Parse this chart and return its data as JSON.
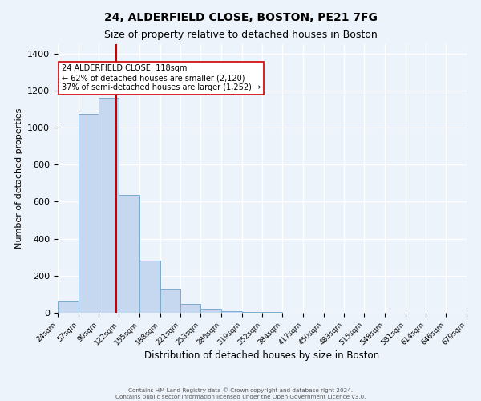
{
  "title": "24, ALDERFIELD CLOSE, BOSTON, PE21 7FG",
  "subtitle": "Size of property relative to detached houses in Boston",
  "xlabel": "Distribution of detached houses by size in Boston",
  "ylabel": "Number of detached properties",
  "bin_edges": [
    24,
    57,
    90,
    122,
    155,
    188,
    221,
    253,
    286,
    319,
    352,
    384,
    417,
    450,
    483,
    515,
    548,
    581,
    614,
    646,
    679
  ],
  "bin_heights": [
    65,
    1075,
    1160,
    635,
    280,
    130,
    48,
    20,
    10,
    5,
    5,
    0,
    0,
    0,
    0,
    0,
    0,
    0,
    0,
    0
  ],
  "bar_color": "#c5d8f0",
  "bar_edge_color": "#7aabcf",
  "property_size": 118,
  "vline_color": "#cc0000",
  "annotation_text": "24 ALDERFIELD CLOSE: 118sqm\n← 62% of detached houses are smaller (2,120)\n37% of semi-detached houses are larger (1,252) →",
  "annotation_box_edge": "#cc0000",
  "annotation_box_face": "white",
  "ylim": [
    0,
    1450
  ],
  "yticks": [
    0,
    200,
    400,
    600,
    800,
    1000,
    1200,
    1400
  ],
  "tick_labels": [
    "24sqm",
    "57sqm",
    "90sqm",
    "122sqm",
    "155sqm",
    "188sqm",
    "221sqm",
    "253sqm",
    "286sqm",
    "319sqm",
    "352sqm",
    "384sqm",
    "417sqm",
    "450sqm",
    "483sqm",
    "515sqm",
    "548sqm",
    "581sqm",
    "614sqm",
    "646sqm",
    "679sqm"
  ],
  "footer_line1": "Contains HM Land Registry data © Crown copyright and database right 2024.",
  "footer_line2": "Contains public sector information licensed under the Open Government Licence v3.0.",
  "background_color": "#edf3fb",
  "grid_color": "#ffffff",
  "title_fontsize": 10,
  "subtitle_fontsize": 9
}
